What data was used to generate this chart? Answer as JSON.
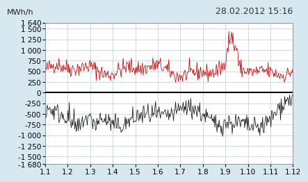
{
  "title_text": "28.02.2012 15:16",
  "ylabel": "MWh/h",
  "background_color": "#d8e8f0",
  "plot_background": "#ffffff",
  "red_line_color": "#cc0000",
  "black_line_color": "#111111",
  "zero_line_color": "#000000",
  "grid_color": "#b8cdd8",
  "yticks_upper": [
    1640,
    1500,
    1250,
    1000,
    750,
    500,
    250,
    0
  ],
  "yticks_lower": [
    -250,
    -500,
    -750,
    -1000,
    -1250,
    -1500,
    -1680
  ],
  "xtick_labels": [
    "1.1",
    "1.2",
    "1.3",
    "1.4",
    "1.5",
    "1.6",
    "1.7",
    "1.8",
    "1.9",
    "1.10",
    "1.11",
    "1.12"
  ],
  "ylim": [
    -1680,
    1640
  ],
  "n_points": 360,
  "title_fontsize": 9,
  "label_fontsize": 8,
  "tick_fontsize": 7.5
}
